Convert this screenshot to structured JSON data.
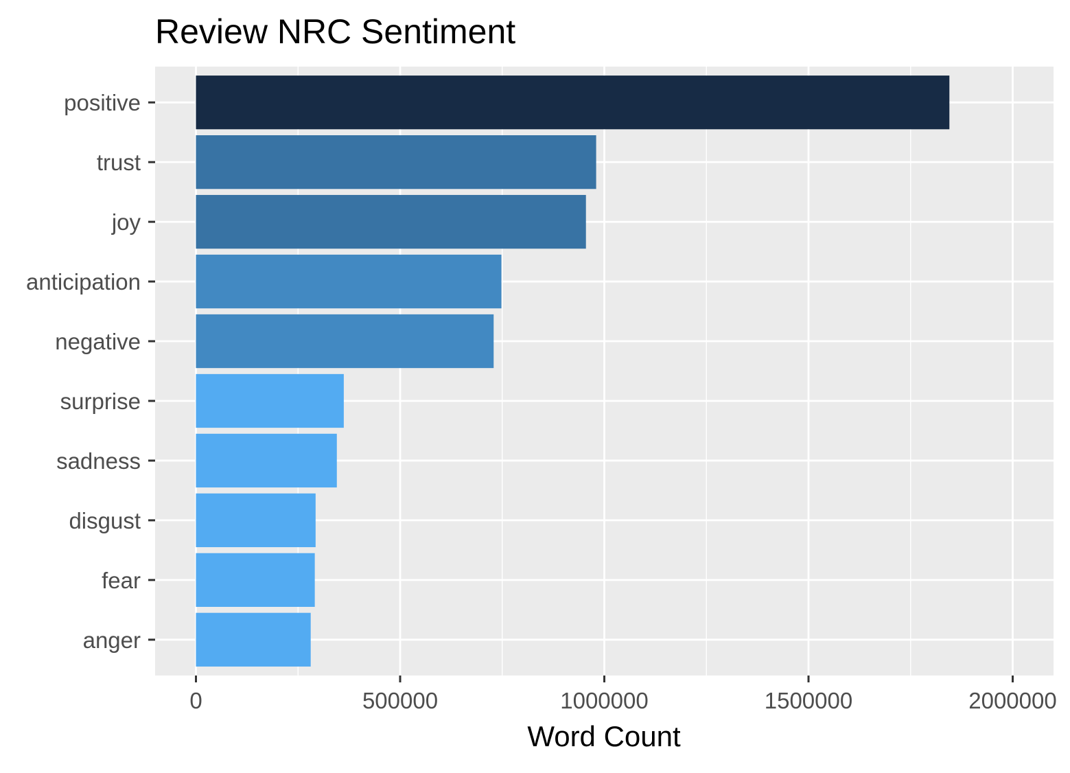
{
  "chart_data": {
    "type": "bar",
    "orientation": "horizontal",
    "title": "Review NRC Sentiment",
    "xlabel": "Word Count",
    "ylabel": "",
    "categories": [
      "positive",
      "trust",
      "joy",
      "anticipation",
      "negative",
      "surprise",
      "sadness",
      "disgust",
      "fear",
      "anger"
    ],
    "values": [
      1845000,
      980000,
      955000,
      748000,
      729000,
      362000,
      345000,
      293000,
      291000,
      281000
    ],
    "bar_colors": [
      "#172b45",
      "#3873a4",
      "#3873a4",
      "#4289c2",
      "#4289c2",
      "#53abf2",
      "#53abf2",
      "#53abf2",
      "#53abf2",
      "#53abf2"
    ],
    "xlim": [
      -100000,
      2100000
    ],
    "x_ticks": [
      0,
      500000,
      1000000,
      1500000,
      2000000
    ],
    "x_tick_labels": [
      "0",
      "500000",
      "1000000",
      "1500000",
      "2000000"
    ],
    "grid": true,
    "legend": "none",
    "panel_background": "#ebebeb",
    "grid_color": "#ffffff"
  }
}
